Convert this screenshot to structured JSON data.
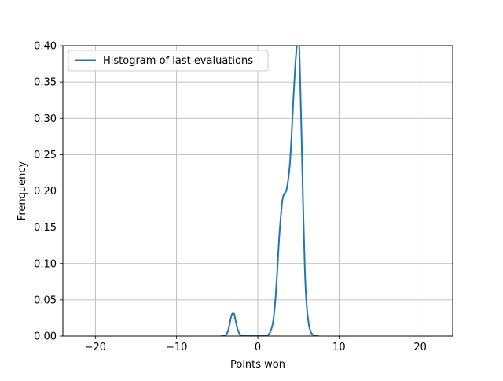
{
  "chart_data": {
    "type": "line",
    "xlabel": "Points won",
    "ylabel": "Frenquency",
    "xlim": [
      -24,
      24
    ],
    "ylim": [
      0,
      0.4
    ],
    "x_ticks": [
      -20,
      -10,
      0,
      10,
      20
    ],
    "x_tick_labels": [
      "−20",
      "−10",
      "0",
      "10",
      "20"
    ],
    "y_ticks": [
      0,
      0.05,
      0.1,
      0.15,
      0.2,
      0.25,
      0.3,
      0.35,
      0.4
    ],
    "y_tick_labels": [
      "0.00",
      "0.05",
      "0.10",
      "0.15",
      "0.20",
      "0.25",
      "0.30",
      "0.35",
      "0.40"
    ],
    "grid": true,
    "legend_position": "upper-left",
    "series": [
      {
        "name": "Histogram of last evaluations",
        "color": "#1f77b4",
        "x": [
          -4.5,
          -4.0,
          -3.7,
          -3.5,
          -3.3,
          -3.1,
          -3.0,
          -2.9,
          -2.7,
          -2.5,
          -2.3,
          -2.0,
          -1.5,
          -1.0,
          0.0,
          1.0,
          1.2,
          1.5,
          1.8,
          2.0,
          2.2,
          2.4,
          2.6,
          2.8,
          3.0,
          3.2,
          3.5,
          3.8,
          4.0,
          4.2,
          4.4,
          4.6,
          4.8,
          4.9,
          5.0,
          5.1,
          5.2,
          5.4,
          5.6,
          5.8,
          6.0,
          6.3,
          6.6,
          7.0,
          7.5
        ],
        "y": [
          0.0,
          0.001,
          0.006,
          0.015,
          0.026,
          0.032,
          0.032,
          0.03,
          0.02,
          0.01,
          0.004,
          0.0005,
          0.0,
          0.0,
          0.0,
          0.0,
          0.001,
          0.005,
          0.015,
          0.03,
          0.055,
          0.09,
          0.13,
          0.16,
          0.185,
          0.195,
          0.2,
          0.22,
          0.245,
          0.285,
          0.33,
          0.37,
          0.4,
          0.42,
          0.415,
          0.4,
          0.36,
          0.27,
          0.17,
          0.09,
          0.045,
          0.015,
          0.004,
          0.0005,
          0.0
        ]
      }
    ]
  }
}
